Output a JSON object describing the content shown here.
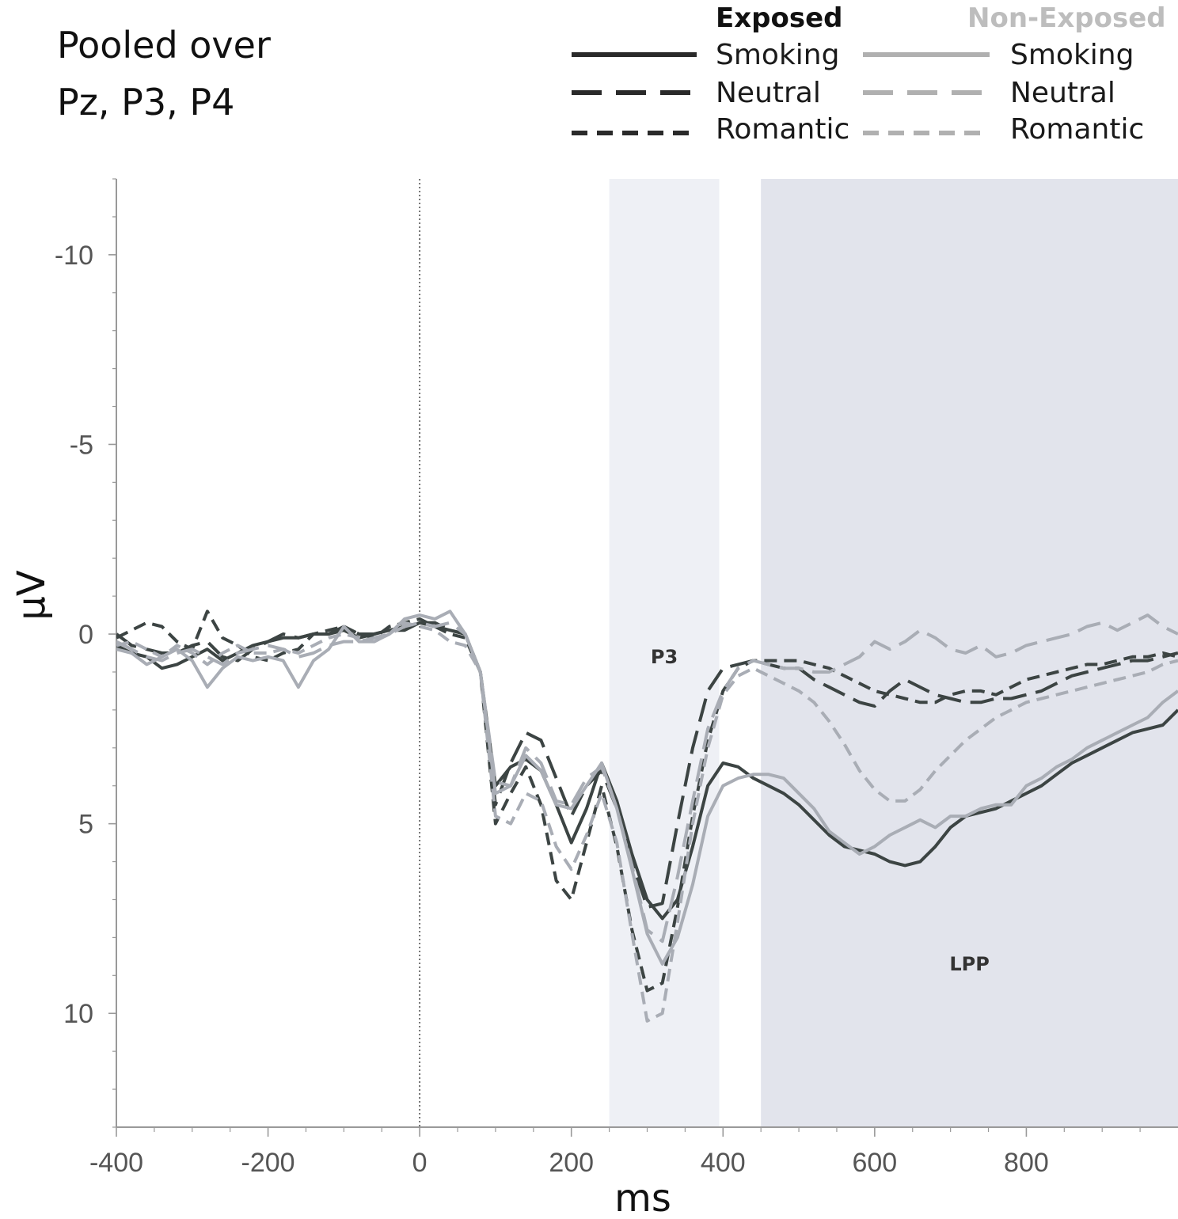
{
  "panel_label": [
    "Pooled over",
    "Pz, P3, P4"
  ],
  "legend": {
    "groups": [
      {
        "name": "Exposed",
        "color": "#1f1f1f",
        "entries": [
          "Smoking",
          "Neutral",
          "Romantic"
        ]
      },
      {
        "name": "Non-Exposed",
        "color": "#b3b3b3",
        "entries": [
          "Smoking",
          "Neutral",
          "Romantic"
        ]
      }
    ]
  },
  "colors": {
    "exposed": "#2a2a2a",
    "exposed_plot": "#3c4443",
    "non_exposed": "#b0b0b0",
    "non_exposed_plot": "#a9adb5",
    "p3_window": "#eef0f5",
    "lpp_window": "#e2e4ec",
    "axis": "#999999",
    "tick_label": "#555555"
  },
  "chart_data": {
    "type": "line",
    "xlabel": "ms",
    "ylabel": "µV",
    "xlim": [
      -400,
      1000
    ],
    "ylim": [
      -12,
      13
    ],
    "y_inverted": true,
    "x_ticks": [
      -400,
      -200,
      0,
      200,
      400,
      600,
      800
    ],
    "y_ticks": [
      -10,
      -5,
      0,
      5,
      10
    ],
    "grid": false,
    "legend_position": "top-right",
    "onset_marker_x": 0,
    "windows": [
      {
        "label": "P3",
        "start": 250,
        "end": 395
      },
      {
        "label": "LPP",
        "start": 450,
        "end": 1000
      }
    ],
    "x": [
      -400,
      -380,
      -360,
      -340,
      -320,
      -300,
      -280,
      -260,
      -240,
      -220,
      -200,
      -180,
      -160,
      -140,
      -120,
      -100,
      -80,
      -60,
      -40,
      -20,
      0,
      20,
      40,
      60,
      80,
      100,
      120,
      140,
      160,
      180,
      200,
      220,
      240,
      260,
      280,
      300,
      320,
      340,
      360,
      380,
      400,
      420,
      440,
      460,
      480,
      500,
      520,
      540,
      560,
      580,
      600,
      620,
      640,
      660,
      680,
      700,
      720,
      740,
      760,
      780,
      800,
      820,
      840,
      860,
      880,
      900,
      920,
      940,
      960,
      980,
      1000
    ],
    "series": [
      {
        "name": "Smoking",
        "group": "Exposed",
        "values": [
          0.3,
          0.5,
          0.6,
          0.9,
          0.8,
          0.6,
          0.4,
          0.7,
          0.5,
          0.3,
          0.2,
          0.1,
          0.1,
          0.0,
          0.0,
          -0.1,
          0.1,
          0.0,
          -0.1,
          -0.1,
          -0.3,
          -0.2,
          -0.1,
          0.0,
          1.0,
          4.0,
          3.5,
          3.3,
          3.6,
          4.5,
          5.5,
          4.6,
          3.4,
          4.4,
          5.8,
          7.0,
          7.5,
          7.0,
          5.6,
          4.0,
          3.4,
          3.5,
          3.8,
          4.0,
          4.2,
          4.5,
          4.9,
          5.3,
          5.6,
          5.7,
          5.8,
          6.0,
          6.1,
          6.0,
          5.6,
          5.1,
          4.8,
          4.7,
          4.6,
          4.4,
          4.2,
          4.0,
          3.7,
          3.4,
          3.2,
          3.0,
          2.8,
          2.6,
          2.5,
          2.4,
          2.0
        ]
      },
      {
        "name": "Neutral",
        "group": "Exposed",
        "values": [
          0.0,
          0.3,
          0.4,
          0.5,
          0.5,
          0.3,
          0.2,
          0.6,
          0.7,
          0.4,
          0.2,
          0.0,
          0.1,
          0.0,
          0.0,
          -0.2,
          0.0,
          0.0,
          -0.1,
          -0.2,
          -0.3,
          -0.3,
          -0.1,
          0.0,
          1.0,
          4.5,
          3.4,
          2.6,
          2.8,
          3.8,
          4.8,
          4.0,
          3.6,
          4.6,
          6.0,
          7.2,
          7.1,
          5.0,
          3.0,
          1.5,
          0.9,
          0.8,
          0.7,
          0.8,
          0.9,
          0.9,
          1.2,
          1.4,
          1.6,
          1.8,
          1.9,
          1.5,
          1.2,
          1.4,
          1.6,
          1.7,
          1.8,
          1.8,
          1.7,
          1.7,
          1.6,
          1.5,
          1.3,
          1.1,
          1.0,
          0.9,
          0.8,
          0.7,
          0.7,
          0.6,
          0.5
        ]
      },
      {
        "name": "Romantic",
        "group": "Exposed",
        "values": [
          0.1,
          -0.1,
          -0.3,
          -0.2,
          0.2,
          0.4,
          -0.6,
          0.1,
          0.3,
          0.6,
          0.7,
          0.5,
          0.4,
          0.0,
          -0.1,
          -0.2,
          0.0,
          0.1,
          -0.2,
          -0.3,
          -0.4,
          -0.2,
          0.0,
          0.1,
          1.0,
          5.0,
          4.2,
          3.5,
          4.5,
          6.5,
          7.0,
          5.5,
          4.0,
          5.6,
          7.8,
          9.4,
          9.2,
          7.2,
          4.8,
          2.8,
          1.5,
          0.9,
          0.7,
          0.7,
          0.7,
          0.7,
          0.8,
          0.9,
          1.1,
          1.3,
          1.5,
          1.6,
          1.7,
          1.8,
          1.8,
          1.6,
          1.5,
          1.5,
          1.6,
          1.4,
          1.2,
          1.1,
          1.0,
          0.9,
          0.8,
          0.8,
          0.7,
          0.6,
          0.6,
          0.5,
          0.6
        ]
      },
      {
        "name": "Smoking",
        "group": "Non-Exposed",
        "values": [
          0.4,
          0.5,
          0.8,
          0.6,
          0.4,
          0.7,
          1.4,
          0.9,
          0.6,
          0.7,
          0.6,
          0.7,
          1.4,
          0.7,
          0.4,
          -0.2,
          0.2,
          0.2,
          0.0,
          -0.4,
          -0.5,
          -0.4,
          -0.6,
          0.0,
          1.0,
          4.2,
          4.0,
          3.2,
          3.6,
          4.5,
          4.6,
          4.0,
          3.4,
          4.6,
          6.2,
          7.9,
          8.7,
          8.0,
          6.6,
          4.8,
          4.0,
          3.8,
          3.7,
          3.7,
          3.8,
          4.2,
          4.6,
          5.2,
          5.5,
          5.8,
          5.6,
          5.3,
          5.1,
          4.9,
          5.1,
          4.8,
          4.8,
          4.6,
          4.5,
          4.5,
          4.0,
          3.8,
          3.5,
          3.3,
          3.0,
          2.8,
          2.6,
          2.4,
          2.2,
          1.8,
          1.5
        ]
      },
      {
        "name": "Neutral",
        "group": "Non-Exposed",
        "values": [
          0.2,
          0.4,
          0.6,
          0.7,
          0.5,
          0.4,
          0.6,
          0.8,
          0.5,
          0.4,
          0.3,
          0.4,
          0.6,
          0.5,
          0.3,
          0.2,
          0.2,
          0.1,
          0.0,
          -0.2,
          -0.3,
          -0.2,
          -0.3,
          0.0,
          1.0,
          3.9,
          4.0,
          3.0,
          3.4,
          4.4,
          4.5,
          3.8,
          3.5,
          4.6,
          6.1,
          7.8,
          8.1,
          6.4,
          4.4,
          2.5,
          1.5,
          0.9,
          0.7,
          0.8,
          0.9,
          0.9,
          1.0,
          1.0,
          0.8,
          0.6,
          0.2,
          0.4,
          0.2,
          -0.1,
          0.1,
          0.4,
          0.5,
          0.3,
          0.6,
          0.5,
          0.3,
          0.2,
          0.1,
          0.0,
          -0.2,
          -0.3,
          -0.1,
          -0.3,
          -0.5,
          -0.2,
          0.0
        ]
      },
      {
        "name": "Romantic",
        "group": "Non-Exposed",
        "values": [
          0.3,
          0.2,
          0.4,
          0.6,
          0.3,
          0.5,
          0.8,
          0.5,
          0.3,
          0.5,
          0.5,
          0.4,
          0.5,
          0.3,
          0.1,
          0.0,
          0.1,
          0.2,
          0.0,
          -0.3,
          -0.2,
          -0.1,
          0.2,
          0.3,
          1.0,
          4.8,
          5.0,
          4.2,
          4.4,
          5.6,
          6.2,
          5.3,
          4.2,
          5.5,
          7.9,
          10.2,
          10.0,
          7.6,
          5.0,
          3.0,
          1.6,
          1.1,
          0.9,
          1.1,
          1.3,
          1.5,
          1.8,
          2.3,
          2.9,
          3.6,
          4.1,
          4.4,
          4.4,
          4.1,
          3.6,
          3.2,
          2.8,
          2.5,
          2.2,
          2.0,
          1.8,
          1.7,
          1.6,
          1.5,
          1.4,
          1.3,
          1.2,
          1.1,
          1.0,
          0.8,
          0.7
        ]
      }
    ]
  }
}
